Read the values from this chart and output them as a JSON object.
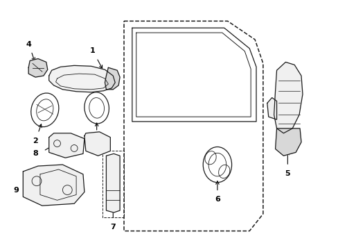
{
  "bg_color": "#ffffff",
  "line_color": "#1a1a1a",
  "dashed_color": "#1a1a1a",
  "fill_light": "#f0f0f0",
  "fill_mid": "#d8d8d8",
  "lw": 0.9,
  "fig_w": 4.89,
  "fig_h": 3.6,
  "dpi": 100
}
